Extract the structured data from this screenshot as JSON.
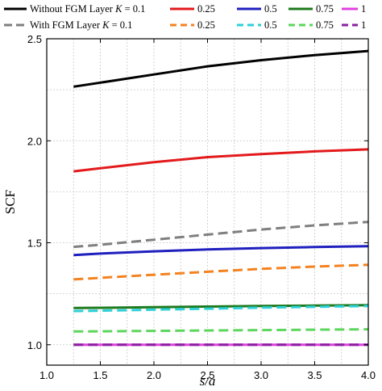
{
  "chart_data": {
    "type": "line",
    "xlabel": "s/a",
    "ylabel": "SCF",
    "xlim": [
      1.0,
      4.0
    ],
    "ylim": [
      0.9,
      2.5
    ],
    "xticks": [
      "1.0",
      "1.5",
      "2.0",
      "2.5",
      "3.0",
      "3.5",
      "4.0"
    ],
    "yticks": [
      "1.0",
      "1.5",
      "2.0",
      "2.5"
    ],
    "xtick_values": [
      1.0,
      1.5,
      2.0,
      2.5,
      3.0,
      3.5,
      4.0
    ],
    "ytick_values": [
      1.0,
      1.5,
      2.0,
      2.5
    ],
    "grid": true,
    "legend_position": "top",
    "legend_rows": [
      {
        "label": "Without FGM Layer K = 0.1",
        "label_parts": [
          "Without FGM Layer ",
          "K",
          " = 0.1"
        ],
        "style": "solid",
        "entries": [
          {
            "label": "0.25",
            "color": "#e31a1c"
          },
          {
            "label": "0.5",
            "color": "#1f1fbf"
          },
          {
            "label": "0.75",
            "color": "#1d7a1d"
          },
          {
            "label": "1",
            "color": "#e040e0"
          }
        ]
      },
      {
        "label": "With FGM Layer K = 0.1",
        "label_parts": [
          "With FGM Layer ",
          "K",
          " = 0.1"
        ],
        "style": "dashed",
        "entries": [
          {
            "label": "0.25",
            "color": "#f58220"
          },
          {
            "label": "0.5",
            "color": "#2ed0d8"
          },
          {
            "label": "0.75",
            "color": "#5cd65c"
          },
          {
            "label": "1",
            "color": "#8b1fa0"
          }
        ]
      }
    ],
    "x": [
      1.25,
      1.5,
      2.0,
      2.5,
      3.0,
      3.5,
      4.0
    ],
    "series": [
      {
        "legend_row": 0,
        "legend_entry": -1,
        "color": "#000000",
        "style": "solid",
        "values": [
          2.265,
          2.285,
          2.325,
          2.365,
          2.395,
          2.42,
          2.44
        ]
      },
      {
        "legend_row": 0,
        "legend_entry": 0,
        "color": "#e31a1c",
        "style": "solid",
        "values": [
          1.85,
          1.865,
          1.895,
          1.92,
          1.935,
          1.948,
          1.958
        ]
      },
      {
        "legend_row": 0,
        "legend_entry": 1,
        "color": "#1f1fbf",
        "style": "solid",
        "values": [
          1.44,
          1.447,
          1.458,
          1.467,
          1.474,
          1.479,
          1.483
        ]
      },
      {
        "legend_row": 0,
        "legend_entry": 2,
        "color": "#1d7a1d",
        "style": "solid",
        "values": [
          1.18,
          1.181,
          1.184,
          1.187,
          1.19,
          1.192,
          1.194
        ]
      },
      {
        "legend_row": 0,
        "legend_entry": 3,
        "color": "#e040e0",
        "style": "solid",
        "values": [
          1.0,
          1.0,
          1.0,
          1.0,
          1.0,
          1.0,
          1.0
        ]
      },
      {
        "legend_row": 1,
        "legend_entry": -1,
        "color": "#7f7f7f",
        "style": "dashed",
        "values": [
          1.48,
          1.49,
          1.515,
          1.54,
          1.565,
          1.585,
          1.602
        ]
      },
      {
        "legend_row": 1,
        "legend_entry": 0,
        "color": "#f58220",
        "style": "dashed",
        "values": [
          1.32,
          1.328,
          1.343,
          1.358,
          1.372,
          1.383,
          1.392
        ]
      },
      {
        "legend_row": 1,
        "legend_entry": 1,
        "color": "#2ed0d8",
        "style": "dashed",
        "values": [
          1.165,
          1.167,
          1.172,
          1.177,
          1.182,
          1.186,
          1.19
        ]
      },
      {
        "legend_row": 1,
        "legend_entry": 2,
        "color": "#5cd65c",
        "style": "dashed",
        "values": [
          1.065,
          1.066,
          1.068,
          1.07,
          1.072,
          1.074,
          1.076
        ]
      },
      {
        "legend_row": 1,
        "legend_entry": 3,
        "color": "#8b1fa0",
        "style": "dashed",
        "values": [
          1.0,
          1.0,
          1.0,
          1.0,
          1.0,
          1.0,
          1.0
        ]
      }
    ]
  }
}
